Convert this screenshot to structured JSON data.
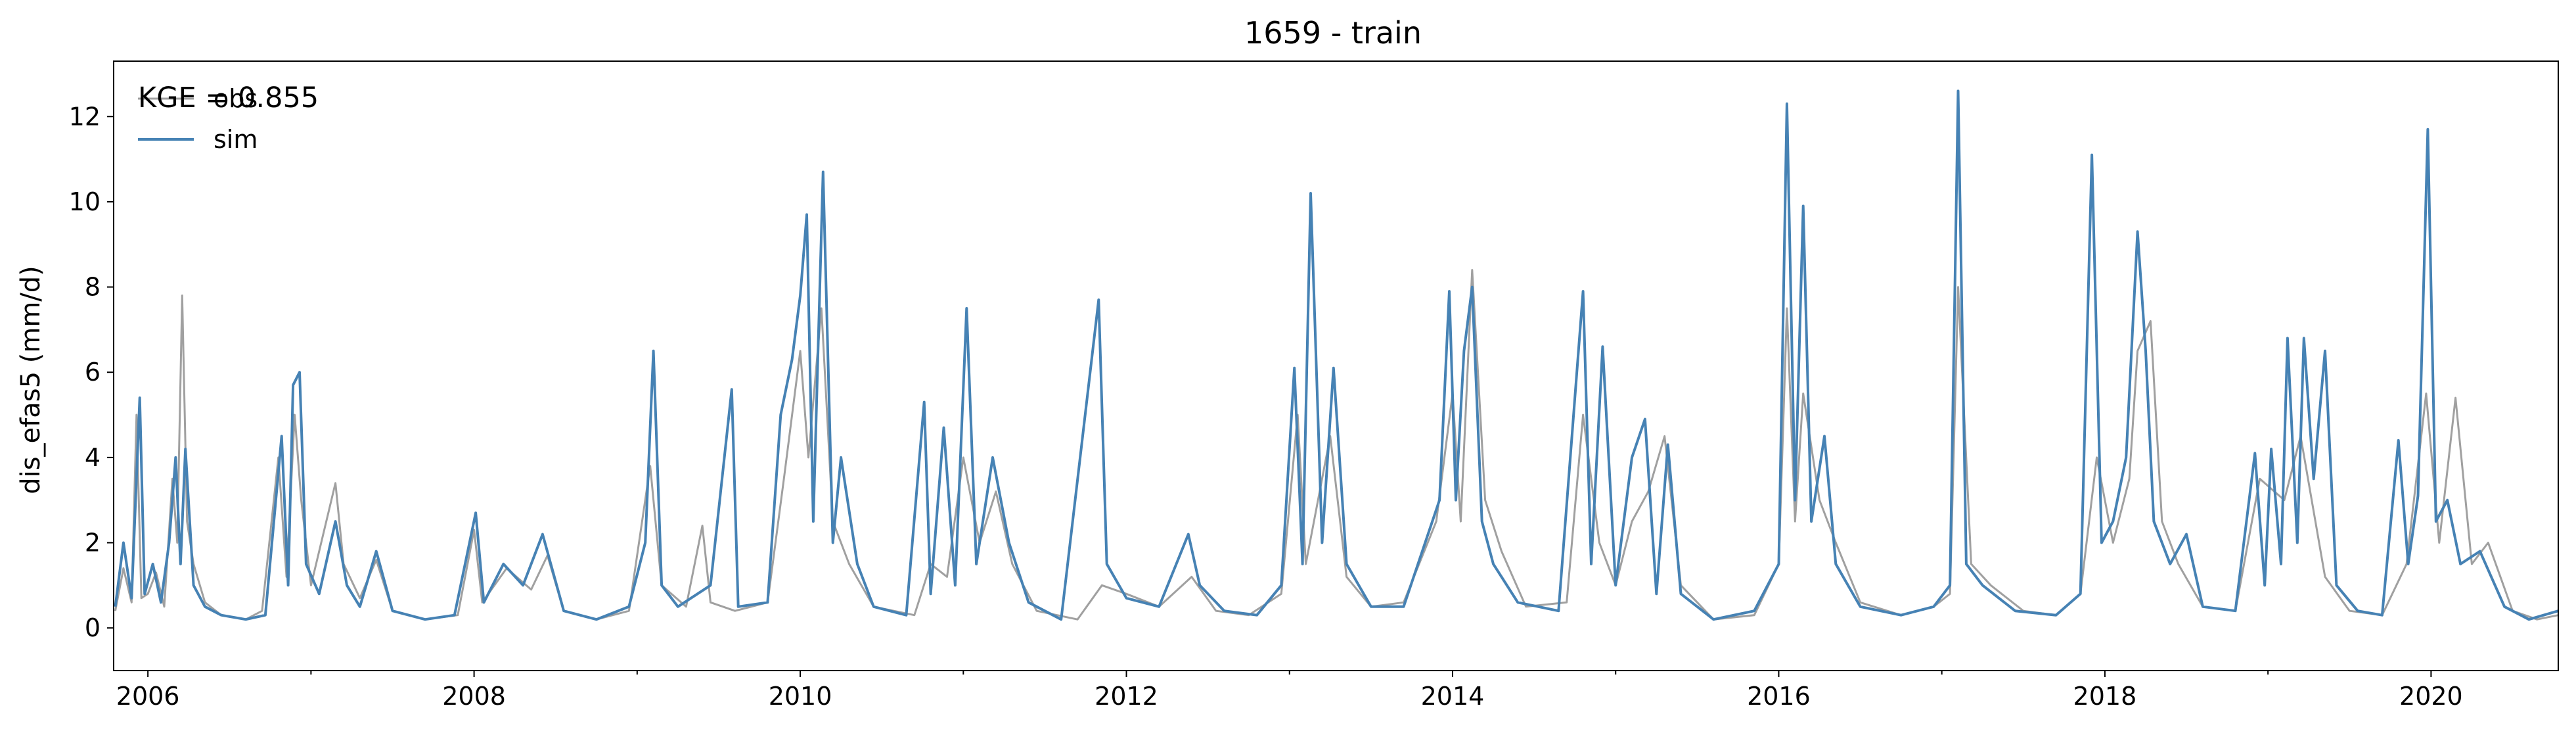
{
  "chart_data": {
    "type": "line",
    "title": "1659 - train",
    "xlabel": "",
    "ylabel": "dis_efas5 (mm/d)",
    "xlim": [
      2005.79,
      2020.78
    ],
    "ylim": [
      -1,
      13.3
    ],
    "x_ticks": [
      2006,
      2008,
      2010,
      2012,
      2014,
      2016,
      2018,
      2020
    ],
    "x_tick_labels": [
      "2006",
      "2008",
      "2010",
      "2012",
      "2014",
      "2016",
      "2018",
      "2020"
    ],
    "y_ticks": [
      0,
      2,
      4,
      6,
      8,
      10,
      12
    ],
    "y_tick_labels": [
      "0",
      "2",
      "4",
      "6",
      "8",
      "10",
      "12"
    ],
    "grid": false,
    "legend": {
      "position": "top-left",
      "entries": [
        "obs",
        "sim"
      ]
    },
    "annotation": "KGE = 0.855",
    "series": [
      {
        "name": "obs",
        "color": "#a0a0a0",
        "points": [
          [
            2005.8,
            0.4
          ],
          [
            2005.85,
            1.4
          ],
          [
            2005.9,
            0.6
          ],
          [
            2005.93,
            5.0
          ],
          [
            2005.96,
            0.7
          ],
          [
            2006.0,
            0.8
          ],
          [
            2006.05,
            1.3
          ],
          [
            2006.1,
            0.5
          ],
          [
            2006.15,
            3.5
          ],
          [
            2006.18,
            2.0
          ],
          [
            2006.21,
            7.8
          ],
          [
            2006.24,
            2.5
          ],
          [
            2006.28,
            1.5
          ],
          [
            2006.35,
            0.6
          ],
          [
            2006.45,
            0.3
          ],
          [
            2006.6,
            0.2
          ],
          [
            2006.7,
            0.4
          ],
          [
            2006.8,
            4.0
          ],
          [
            2006.85,
            1.2
          ],
          [
            2006.9,
            5.0
          ],
          [
            2006.94,
            3.0
          ],
          [
            2007.0,
            1.0
          ],
          [
            2007.15,
            3.4
          ],
          [
            2007.2,
            1.5
          ],
          [
            2007.3,
            0.7
          ],
          [
            2007.4,
            1.6
          ],
          [
            2007.5,
            0.4
          ],
          [
            2007.7,
            0.2
          ],
          [
            2007.9,
            0.3
          ],
          [
            2008.0,
            2.3
          ],
          [
            2008.05,
            0.6
          ],
          [
            2008.2,
            1.4
          ],
          [
            2008.35,
            0.9
          ],
          [
            2008.45,
            1.7
          ],
          [
            2008.55,
            0.4
          ],
          [
            2008.75,
            0.2
          ],
          [
            2008.95,
            0.4
          ],
          [
            2009.08,
            3.8
          ],
          [
            2009.15,
            1.0
          ],
          [
            2009.3,
            0.5
          ],
          [
            2009.4,
            2.4
          ],
          [
            2009.45,
            0.6
          ],
          [
            2009.6,
            0.4
          ],
          [
            2009.8,
            0.6
          ],
          [
            2009.9,
            3.5
          ],
          [
            2010.0,
            6.5
          ],
          [
            2010.05,
            4.0
          ],
          [
            2010.13,
            7.5
          ],
          [
            2010.2,
            2.5
          ],
          [
            2010.3,
            1.5
          ],
          [
            2010.45,
            0.5
          ],
          [
            2010.7,
            0.3
          ],
          [
            2010.8,
            1.5
          ],
          [
            2010.9,
            1.2
          ],
          [
            2011.0,
            4.0
          ],
          [
            2011.1,
            2.0
          ],
          [
            2011.2,
            3.2
          ],
          [
            2011.3,
            1.5
          ],
          [
            2011.45,
            0.4
          ],
          [
            2011.7,
            0.2
          ],
          [
            2011.85,
            1.0
          ],
          [
            2012.0,
            0.8
          ],
          [
            2012.2,
            0.5
          ],
          [
            2012.4,
            1.2
          ],
          [
            2012.55,
            0.4
          ],
          [
            2012.75,
            0.3
          ],
          [
            2012.95,
            0.8
          ],
          [
            2013.05,
            5.0
          ],
          [
            2013.1,
            1.5
          ],
          [
            2013.25,
            4.5
          ],
          [
            2013.35,
            1.2
          ],
          [
            2013.5,
            0.5
          ],
          [
            2013.7,
            0.6
          ],
          [
            2013.9,
            2.5
          ],
          [
            2014.0,
            5.5
          ],
          [
            2014.05,
            2.5
          ],
          [
            2014.12,
            8.4
          ],
          [
            2014.2,
            3.0
          ],
          [
            2014.3,
            1.8
          ],
          [
            2014.45,
            0.5
          ],
          [
            2014.7,
            0.6
          ],
          [
            2014.8,
            5.0
          ],
          [
            2014.9,
            2.0
          ],
          [
            2015.0,
            1.0
          ],
          [
            2015.1,
            2.5
          ],
          [
            2015.2,
            3.2
          ],
          [
            2015.3,
            4.5
          ],
          [
            2015.4,
            1.0
          ],
          [
            2015.6,
            0.2
          ],
          [
            2015.85,
            0.3
          ],
          [
            2016.0,
            1.5
          ],
          [
            2016.05,
            7.5
          ],
          [
            2016.1,
            2.5
          ],
          [
            2016.15,
            5.5
          ],
          [
            2016.25,
            3.0
          ],
          [
            2016.35,
            2.0
          ],
          [
            2016.5,
            0.6
          ],
          [
            2016.75,
            0.3
          ],
          [
            2016.95,
            0.5
          ],
          [
            2017.05,
            0.8
          ],
          [
            2017.1,
            8.0
          ],
          [
            2017.18,
            1.5
          ],
          [
            2017.3,
            1.0
          ],
          [
            2017.5,
            0.4
          ],
          [
            2017.7,
            0.3
          ],
          [
            2017.85,
            0.8
          ],
          [
            2017.95,
            4.0
          ],
          [
            2018.05,
            2.0
          ],
          [
            2018.15,
            3.5
          ],
          [
            2018.2,
            6.5
          ],
          [
            2018.28,
            7.2
          ],
          [
            2018.35,
            2.5
          ],
          [
            2018.45,
            1.5
          ],
          [
            2018.6,
            0.5
          ],
          [
            2018.8,
            0.4
          ],
          [
            2018.95,
            3.5
          ],
          [
            2019.1,
            3.0
          ],
          [
            2019.2,
            4.5
          ],
          [
            2019.35,
            1.2
          ],
          [
            2019.5,
            0.4
          ],
          [
            2019.7,
            0.3
          ],
          [
            2019.85,
            1.5
          ],
          [
            2019.97,
            5.5
          ],
          [
            2020.05,
            2.0
          ],
          [
            2020.15,
            5.4
          ],
          [
            2020.25,
            1.5
          ],
          [
            2020.35,
            2.0
          ],
          [
            2020.5,
            0.4
          ],
          [
            2020.65,
            0.2
          ],
          [
            2020.78,
            0.3
          ]
        ]
      },
      {
        "name": "sim",
        "color": "#4682b4",
        "points": [
          [
            2005.8,
            0.5
          ],
          [
            2005.85,
            2.0
          ],
          [
            2005.9,
            0.7
          ],
          [
            2005.95,
            5.4
          ],
          [
            2005.98,
            0.8
          ],
          [
            2006.03,
            1.5
          ],
          [
            2006.08,
            0.6
          ],
          [
            2006.13,
            2.0
          ],
          [
            2006.17,
            4.0
          ],
          [
            2006.2,
            1.5
          ],
          [
            2006.23,
            4.2
          ],
          [
            2006.28,
            1.0
          ],
          [
            2006.35,
            0.5
          ],
          [
            2006.45,
            0.3
          ],
          [
            2006.6,
            0.2
          ],
          [
            2006.72,
            0.3
          ],
          [
            2006.82,
            4.5
          ],
          [
            2006.86,
            1.0
          ],
          [
            2006.89,
            5.7
          ],
          [
            2006.93,
            6.0
          ],
          [
            2006.97,
            1.5
          ],
          [
            2007.05,
            0.8
          ],
          [
            2007.15,
            2.5
          ],
          [
            2007.22,
            1.0
          ],
          [
            2007.3,
            0.5
          ],
          [
            2007.4,
            1.8
          ],
          [
            2007.5,
            0.4
          ],
          [
            2007.7,
            0.2
          ],
          [
            2007.88,
            0.3
          ],
          [
            2008.01,
            2.7
          ],
          [
            2008.06,
            0.6
          ],
          [
            2008.18,
            1.5
          ],
          [
            2008.3,
            1.0
          ],
          [
            2008.42,
            2.2
          ],
          [
            2008.55,
            0.4
          ],
          [
            2008.75,
            0.2
          ],
          [
            2008.95,
            0.5
          ],
          [
            2009.05,
            2.0
          ],
          [
            2009.1,
            6.5
          ],
          [
            2009.15,
            1.0
          ],
          [
            2009.25,
            0.5
          ],
          [
            2009.45,
            1.0
          ],
          [
            2009.58,
            5.6
          ],
          [
            2009.62,
            0.5
          ],
          [
            2009.8,
            0.6
          ],
          [
            2009.88,
            5.0
          ],
          [
            2009.95,
            6.3
          ],
          [
            2010.0,
            7.8
          ],
          [
            2010.04,
            9.7
          ],
          [
            2010.08,
            2.5
          ],
          [
            2010.14,
            10.7
          ],
          [
            2010.2,
            2.0
          ],
          [
            2010.25,
            4.0
          ],
          [
            2010.35,
            1.5
          ],
          [
            2010.45,
            0.5
          ],
          [
            2010.65,
            0.3
          ],
          [
            2010.76,
            5.3
          ],
          [
            2010.8,
            0.8
          ],
          [
            2010.88,
            4.7
          ],
          [
            2010.95,
            1.0
          ],
          [
            2011.02,
            7.5
          ],
          [
            2011.08,
            1.5
          ],
          [
            2011.18,
            4.0
          ],
          [
            2011.28,
            2.0
          ],
          [
            2011.4,
            0.6
          ],
          [
            2011.6,
            0.2
          ],
          [
            2011.83,
            7.7
          ],
          [
            2011.88,
            1.5
          ],
          [
            2012.0,
            0.7
          ],
          [
            2012.2,
            0.5
          ],
          [
            2012.38,
            2.2
          ],
          [
            2012.45,
            1.0
          ],
          [
            2012.6,
            0.4
          ],
          [
            2012.8,
            0.3
          ],
          [
            2012.95,
            1.0
          ],
          [
            2013.03,
            6.1
          ],
          [
            2013.08,
            1.5
          ],
          [
            2013.13,
            10.2
          ],
          [
            2013.2,
            2.0
          ],
          [
            2013.27,
            6.1
          ],
          [
            2013.35,
            1.5
          ],
          [
            2013.5,
            0.5
          ],
          [
            2013.7,
            0.5
          ],
          [
            2013.92,
            3.0
          ],
          [
            2013.98,
            7.9
          ],
          [
            2014.02,
            3.0
          ],
          [
            2014.07,
            6.5
          ],
          [
            2014.12,
            8.0
          ],
          [
            2014.18,
            2.5
          ],
          [
            2014.25,
            1.5
          ],
          [
            2014.4,
            0.6
          ],
          [
            2014.65,
            0.4
          ],
          [
            2014.8,
            7.9
          ],
          [
            2014.85,
            1.5
          ],
          [
            2014.92,
            6.6
          ],
          [
            2015.0,
            1.0
          ],
          [
            2015.1,
            4.0
          ],
          [
            2015.18,
            4.9
          ],
          [
            2015.25,
            0.8
          ],
          [
            2015.32,
            4.3
          ],
          [
            2015.4,
            0.8
          ],
          [
            2015.6,
            0.2
          ],
          [
            2015.85,
            0.4
          ],
          [
            2016.0,
            1.5
          ],
          [
            2016.05,
            12.3
          ],
          [
            2016.1,
            3.0
          ],
          [
            2016.15,
            9.9
          ],
          [
            2016.2,
            2.5
          ],
          [
            2016.28,
            4.5
          ],
          [
            2016.35,
            1.5
          ],
          [
            2016.5,
            0.5
          ],
          [
            2016.75,
            0.3
          ],
          [
            2016.95,
            0.5
          ],
          [
            2017.05,
            1.0
          ],
          [
            2017.1,
            12.6
          ],
          [
            2017.15,
            1.5
          ],
          [
            2017.25,
            1.0
          ],
          [
            2017.45,
            0.4
          ],
          [
            2017.7,
            0.3
          ],
          [
            2017.85,
            0.8
          ],
          [
            2017.92,
            11.1
          ],
          [
            2017.98,
            2.0
          ],
          [
            2018.05,
            2.5
          ],
          [
            2018.13,
            4.0
          ],
          [
            2018.2,
            9.3
          ],
          [
            2018.25,
            6.5
          ],
          [
            2018.3,
            2.5
          ],
          [
            2018.4,
            1.5
          ],
          [
            2018.5,
            2.2
          ],
          [
            2018.6,
            0.5
          ],
          [
            2018.8,
            0.4
          ],
          [
            2018.92,
            4.1
          ],
          [
            2018.98,
            1.0
          ],
          [
            2019.02,
            4.2
          ],
          [
            2019.08,
            1.5
          ],
          [
            2019.12,
            6.8
          ],
          [
            2019.18,
            2.0
          ],
          [
            2019.22,
            6.8
          ],
          [
            2019.28,
            3.5
          ],
          [
            2019.35,
            6.5
          ],
          [
            2019.42,
            1.0
          ],
          [
            2019.55,
            0.4
          ],
          [
            2019.7,
            0.3
          ],
          [
            2019.8,
            4.4
          ],
          [
            2019.86,
            1.5
          ],
          [
            2019.92,
            3.1
          ],
          [
            2019.98,
            11.7
          ],
          [
            2020.03,
            2.5
          ],
          [
            2020.1,
            3.0
          ],
          [
            2020.18,
            1.5
          ],
          [
            2020.3,
            1.8
          ],
          [
            2020.45,
            0.5
          ],
          [
            2020.6,
            0.2
          ],
          [
            2020.78,
            0.4
          ]
        ]
      }
    ]
  }
}
